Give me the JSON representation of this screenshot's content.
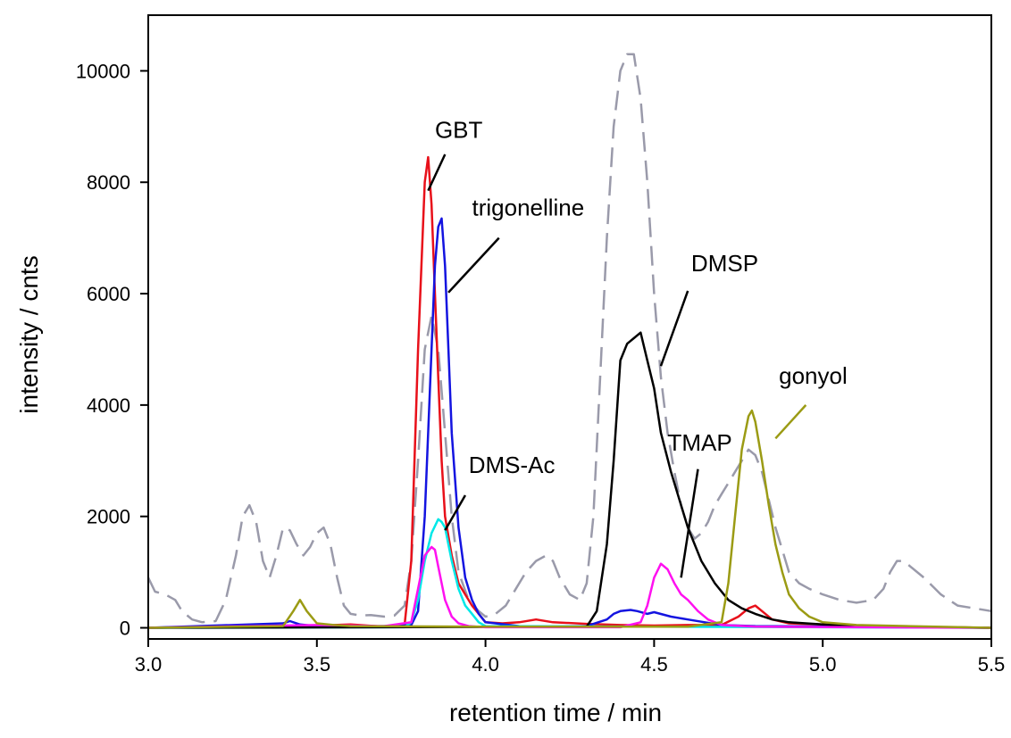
{
  "chart_data": {
    "type": "line",
    "title": "",
    "xlabel": "retention time / min",
    "ylabel": "intensity / cnts",
    "xlim": [
      3.0,
      5.5
    ],
    "ylim": [
      -200,
      11000
    ],
    "xticks": [
      "3.0",
      "3.5",
      "4.0",
      "4.5",
      "5.0",
      "5.5"
    ],
    "yticks": [
      "0",
      "2000",
      "4000",
      "6000",
      "8000",
      "10000"
    ],
    "xtick_values": [
      3.0,
      3.5,
      4.0,
      4.5,
      5.0,
      5.5
    ],
    "ytick_values": [
      0,
      2000,
      4000,
      6000,
      8000,
      10000
    ],
    "grid": false,
    "series": [
      {
        "id": "total",
        "color": "#9a9aaa",
        "dashed": true,
        "x": [
          3.0,
          3.02,
          3.05,
          3.08,
          3.1,
          3.13,
          3.16,
          3.2,
          3.23,
          3.26,
          3.28,
          3.3,
          3.32,
          3.34,
          3.36,
          3.38,
          3.4,
          3.42,
          3.44,
          3.46,
          3.48,
          3.5,
          3.52,
          3.54,
          3.56,
          3.58,
          3.6,
          3.63,
          3.66,
          3.7,
          3.73,
          3.76,
          3.78,
          3.8,
          3.82,
          3.84,
          3.86,
          3.88,
          3.9,
          3.92,
          3.95,
          3.98,
          4.0,
          4.03,
          4.06,
          4.09,
          4.12,
          4.15,
          4.18,
          4.2,
          4.22,
          4.25,
          4.28,
          4.3,
          4.32,
          4.34,
          4.36,
          4.38,
          4.4,
          4.42,
          4.44,
          4.46,
          4.48,
          4.5,
          4.52,
          4.54,
          4.56,
          4.58,
          4.6,
          4.62,
          4.64,
          4.66,
          4.68,
          4.7,
          4.72,
          4.74,
          4.76,
          4.78,
          4.8,
          4.82,
          4.84,
          4.86,
          4.88,
          4.9,
          4.93,
          4.96,
          5.0,
          5.05,
          5.1,
          5.15,
          5.18,
          5.2,
          5.22,
          5.24,
          5.26,
          5.3,
          5.35,
          5.4,
          5.45,
          5.5
        ],
        "y": [
          900,
          650,
          600,
          500,
          300,
          150,
          100,
          120,
          500,
          1300,
          2000,
          2200,
          1900,
          1200,
          900,
          1300,
          1800,
          1750,
          1500,
          1300,
          1450,
          1700,
          1800,
          1500,
          900,
          400,
          250,
          220,
          230,
          200,
          220,
          400,
          1200,
          3000,
          5000,
          5600,
          5000,
          3500,
          2000,
          1000,
          500,
          300,
          200,
          250,
          400,
          700,
          1000,
          1200,
          1300,
          1200,
          900,
          600,
          500,
          800,
          2000,
          4500,
          7000,
          9000,
          10000,
          10300,
          10300,
          9500,
          8000,
          6000,
          4500,
          3500,
          2800,
          2200,
          1800,
          1600,
          1700,
          1900,
          2200,
          2400,
          2600,
          2800,
          3000,
          3200,
          3100,
          2800,
          2300,
          1800,
          1400,
          1000,
          800,
          700,
          600,
          500,
          450,
          500,
          700,
          1000,
          1200,
          1200,
          1100,
          900,
          600,
          400,
          350,
          300
        ]
      },
      {
        "id": "GBT",
        "color": "#e8101a",
        "dashed": false,
        "x": [
          3.0,
          3.3,
          3.4,
          3.45,
          3.5,
          3.55,
          3.6,
          3.7,
          3.76,
          3.78,
          3.8,
          3.82,
          3.83,
          3.84,
          3.85,
          3.86,
          3.87,
          3.88,
          3.9,
          3.92,
          3.94,
          3.96,
          3.98,
          4.0,
          4.05,
          4.1,
          4.15,
          4.2,
          4.3,
          4.4,
          4.5,
          4.6,
          4.7,
          4.75,
          4.78,
          4.8,
          4.82,
          4.85,
          4.9,
          5.0,
          5.1,
          5.5
        ],
        "y": [
          0,
          20,
          40,
          30,
          20,
          50,
          60,
          20,
          50,
          1200,
          5000,
          8000,
          8450,
          7600,
          6000,
          4500,
          3000,
          2000,
          1300,
          800,
          600,
          400,
          250,
          100,
          80,
          100,
          150,
          100,
          70,
          50,
          40,
          50,
          50,
          200,
          350,
          400,
          300,
          150,
          80,
          60,
          30,
          0
        ]
      },
      {
        "id": "trigonelline",
        "color": "#1414e0",
        "dashed": false,
        "x": [
          3.0,
          3.4,
          3.42,
          3.45,
          3.5,
          3.6,
          3.7,
          3.78,
          3.8,
          3.82,
          3.84,
          3.85,
          3.86,
          3.87,
          3.88,
          3.89,
          3.9,
          3.92,
          3.94,
          3.96,
          3.98,
          4.0,
          4.1,
          4.2,
          4.3,
          4.36,
          4.38,
          4.4,
          4.43,
          4.45,
          4.48,
          4.5,
          4.55,
          4.6,
          4.65,
          4.7,
          4.8,
          5.5
        ],
        "y": [
          0,
          80,
          120,
          60,
          30,
          20,
          30,
          50,
          300,
          2000,
          5000,
          6500,
          7200,
          7350,
          6500,
          5000,
          3500,
          1800,
          900,
          500,
          250,
          100,
          30,
          20,
          30,
          150,
          250,
          300,
          320,
          300,
          250,
          280,
          200,
          150,
          100,
          50,
          30,
          0
        ]
      },
      {
        "id": "DMS-Ac",
        "color": "#00e8e8",
        "dashed": false,
        "x": [
          3.0,
          3.76,
          3.78,
          3.8,
          3.82,
          3.84,
          3.86,
          3.87,
          3.88,
          3.9,
          3.92,
          3.94,
          3.96,
          3.98,
          4.0,
          5.5
        ],
        "y": [
          0,
          10,
          100,
          500,
          1200,
          1700,
          1950,
          1900,
          1800,
          1200,
          700,
          400,
          250,
          100,
          30,
          0
        ]
      },
      {
        "id": "DMSP",
        "color": "#000000",
        "dashed": false,
        "x": [
          3.0,
          4.3,
          4.33,
          4.36,
          4.38,
          4.4,
          4.42,
          4.44,
          4.46,
          4.48,
          4.5,
          4.52,
          4.55,
          4.58,
          4.6,
          4.64,
          4.68,
          4.72,
          4.76,
          4.8,
          4.85,
          4.9,
          5.0,
          5.1,
          5.5
        ],
        "y": [
          0,
          20,
          300,
          1500,
          3000,
          4800,
          5100,
          5200,
          5300,
          4800,
          4300,
          3500,
          2800,
          2200,
          1800,
          1200,
          800,
          500,
          350,
          250,
          150,
          100,
          60,
          30,
          0
        ]
      },
      {
        "id": "TMAP",
        "color": "#ff10f0",
        "dashed": false,
        "x": [
          3.0,
          3.3,
          3.4,
          3.5,
          3.6,
          3.7,
          3.78,
          3.8,
          3.82,
          3.84,
          3.85,
          3.86,
          3.88,
          3.9,
          3.92,
          3.95,
          4.0,
          4.4,
          4.46,
          4.48,
          4.5,
          4.52,
          4.54,
          4.56,
          4.58,
          4.6,
          4.63,
          4.66,
          4.7,
          4.8,
          5.5
        ],
        "y": [
          0,
          30,
          40,
          50,
          40,
          30,
          100,
          700,
          1300,
          1450,
          1400,
          1100,
          500,
          200,
          80,
          30,
          10,
          10,
          100,
          400,
          900,
          1150,
          1050,
          800,
          600,
          500,
          300,
          150,
          50,
          20,
          0
        ]
      },
      {
        "id": "gonyol",
        "color": "#9b9b14",
        "dashed": false,
        "x": [
          3.0,
          3.4,
          3.43,
          3.45,
          3.47,
          3.5,
          3.55,
          3.6,
          4.0,
          4.6,
          4.7,
          4.72,
          4.74,
          4.76,
          4.78,
          4.79,
          4.8,
          4.82,
          4.84,
          4.86,
          4.88,
          4.9,
          4.93,
          4.96,
          5.0,
          5.1,
          5.5
        ],
        "y": [
          0,
          30,
          300,
          500,
          300,
          80,
          50,
          30,
          20,
          20,
          100,
          800,
          2000,
          3200,
          3800,
          3900,
          3700,
          3000,
          2200,
          1500,
          1000,
          600,
          350,
          200,
          100,
          50,
          0
        ]
      }
    ],
    "annotations": [
      {
        "text": "GBT",
        "color": "#000000",
        "label_xy": [
          3.85,
          8800
        ],
        "line": [
          [
            3.88,
            8500
          ],
          [
            3.83,
            7850
          ]
        ]
      },
      {
        "text": "trigonelline",
        "color": "#000000",
        "label_xy": [
          3.96,
          7400
        ],
        "line": [
          [
            4.04,
            7000
          ],
          [
            3.89,
            6020
          ]
        ]
      },
      {
        "text": "DMSP",
        "color": "#000000",
        "label_xy": [
          4.61,
          6400
        ],
        "line": [
          [
            4.6,
            6050
          ],
          [
            4.52,
            4700
          ]
        ]
      },
      {
        "text": "gonyol",
        "color": "#9b9b14",
        "label_xy": [
          4.87,
          4380
        ],
        "line": [
          [
            4.95,
            4000
          ],
          [
            4.86,
            3400
          ]
        ]
      },
      {
        "text": "TMAP",
        "color": "#000000",
        "label_xy": [
          4.54,
          3180
        ],
        "line": [
          [
            4.63,
            2850
          ],
          [
            4.58,
            900
          ]
        ]
      },
      {
        "text": "DMS-Ac",
        "color": "#000000",
        "label_xy": [
          3.95,
          2780
        ],
        "line": [
          [
            3.94,
            2380
          ],
          [
            3.88,
            1750
          ]
        ]
      }
    ]
  }
}
